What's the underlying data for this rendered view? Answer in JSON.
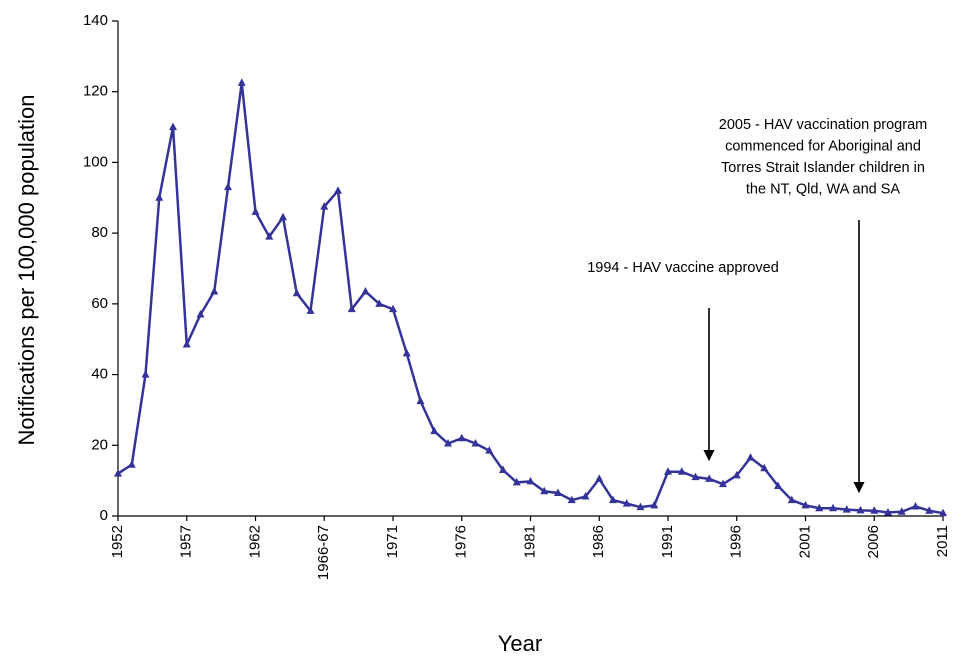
{
  "chart_data": {
    "type": "line",
    "y_label": "Notifications per 100,000 population",
    "x_label": "Year",
    "categories": [
      "1952",
      null,
      null,
      null,
      null,
      "1957",
      null,
      null,
      null,
      null,
      "1962",
      null,
      null,
      null,
      null,
      "1966-67",
      null,
      null,
      null,
      null,
      "1971",
      null,
      null,
      null,
      null,
      "1976",
      null,
      null,
      null,
      null,
      "1981",
      null,
      null,
      null,
      null,
      "1986",
      null,
      null,
      null,
      null,
      "1991",
      null,
      null,
      null,
      null,
      "1996",
      null,
      null,
      null,
      null,
      "2001",
      null,
      null,
      null,
      null,
      "2006",
      null,
      null,
      null,
      null,
      "2011"
    ],
    "values": [
      12,
      14.5,
      40,
      90,
      110,
      48.5,
      57,
      63.5,
      93,
      122.5,
      86,
      79,
      84.5,
      63,
      58,
      87.5,
      92,
      58.5,
      63.5,
      60,
      58.5,
      46,
      32.5,
      24,
      20.5,
      22,
      20.5,
      18.5,
      13,
      9.5,
      9.8,
      7,
      6.5,
      4.5,
      5.5,
      10.5,
      4.5,
      3.5,
      2.5,
      3,
      12.5,
      12.5,
      11,
      10.5,
      9,
      11.5,
      16.5,
      13.5,
      8.5,
      4.5,
      3,
      2.2,
      2.2,
      1.8,
      1.6,
      1.5,
      1,
      1.2,
      2.7,
      1.5,
      0.8
    ],
    "color": "#333399",
    "ylim": [
      0,
      140
    ],
    "yticks": [
      0,
      20,
      40,
      60,
      80,
      100,
      120,
      140
    ],
    "grid": false,
    "annotations": [
      [
        "1994 - HAV vaccine approved"
      ],
      [
        "2005 - HAV vaccination program",
        "commenced for Aboriginal and",
        "Torres Strait Islander children in",
        "the NT, Qld, WA and SA"
      ]
    ]
  }
}
